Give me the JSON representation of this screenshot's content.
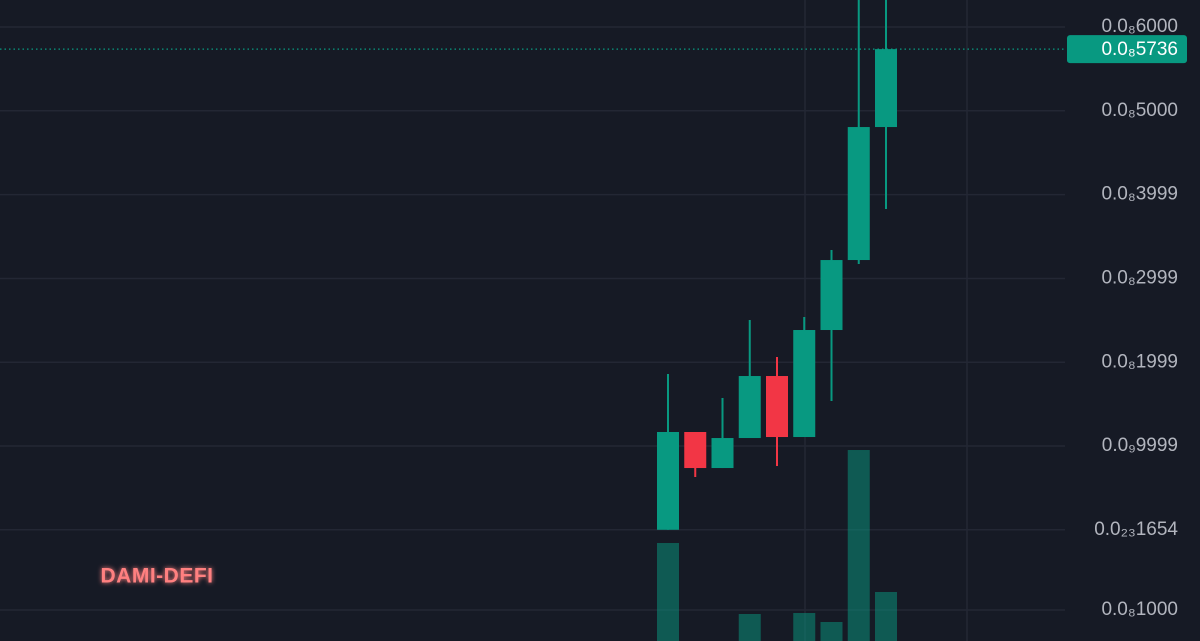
{
  "chart_data": {
    "type": "candlestick",
    "watermark": "DAMI-DEFI",
    "up_color": "#089981",
    "down_color": "#f23645",
    "grid": true,
    "ylim": [
      -1327,
      6322
    ],
    "yticks": [
      {
        "value": 6000,
        "label": "0.0₈6000"
      },
      {
        "value": 5000,
        "label": "0.0₈5000"
      },
      {
        "value": 3999,
        "label": "0.0₈3999"
      },
      {
        "value": 2999,
        "label": "0.0₈2999"
      },
      {
        "value": 1999,
        "label": "0.0₈1999"
      },
      {
        "value": 999.9,
        "label": "0.0₉9999"
      },
      {
        "value": 1.654e-11,
        "label": "0.0₂₃1654"
      }
    ],
    "last_price": {
      "value": 5736,
      "label": "0.0₈5736"
    },
    "open": [
      0,
      1167,
      737,
      1095,
      1835,
      1107,
      2384,
      3219,
      4806
    ],
    "high": [
      1859,
      1167,
      1573,
      2503,
      2062,
      2539,
      3339,
      6400,
      6400
    ],
    "low": [
      0,
      630,
      737,
      1095,
      761,
      1107,
      1537,
      3172,
      3828
    ],
    "close": [
      1167,
      737,
      1095,
      1835,
      1107,
      2384,
      3219,
      4806,
      5736
    ],
    "volume": {
      "ylim": [
        0,
        20677
      ],
      "yticks": [
        {
          "value": 1000,
          "label": "0.0₈1000"
        }
      ],
      "values": [
        3161,
        null,
        null,
        871,
        null,
        903,
        613,
        6161,
        1581
      ]
    }
  }
}
